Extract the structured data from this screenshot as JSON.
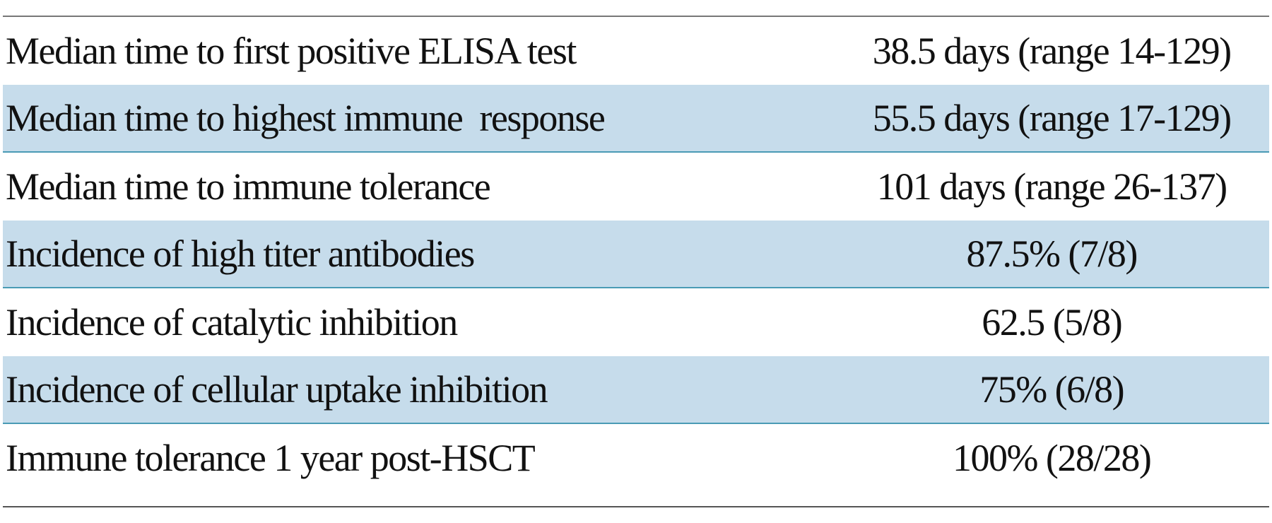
{
  "table": {
    "rows": [
      [
        "Median time to first positive ELISA test",
        "38.5 days (range 14-129)"
      ],
      [
        "Median time to highest immune  response",
        "55.5 days (range 17-129)"
      ],
      [
        "Median time to immune tolerance",
        "101 days (range 26-137)"
      ],
      [
        "Incidence of high titer antibodies",
        "87.5% (7/8)"
      ],
      [
        "Incidence of catalytic inhibition",
        "62.5 (5/8)"
      ],
      [
        "Incidence of cellular uptake inhibition",
        "75% (6/8)"
      ],
      [
        "Immune tolerance 1 year post-HSCT",
        "100% (28/28)"
      ]
    ]
  }
}
